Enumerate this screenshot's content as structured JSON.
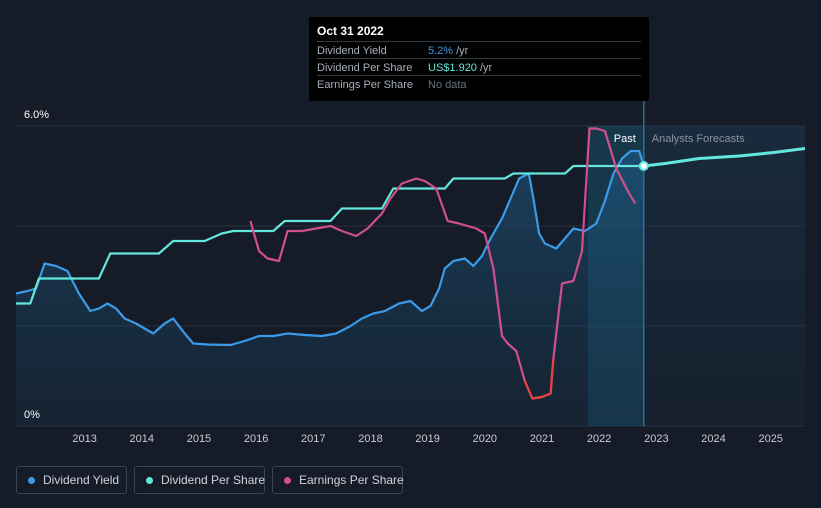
{
  "tooltip": {
    "date": "Oct 31 2022",
    "rows": [
      {
        "label": "Dividend Yield",
        "value": "5.2%",
        "unit": "/yr",
        "color": "#3b9be8"
      },
      {
        "label": "Dividend Per Share",
        "value": "US$1.920",
        "unit": "/yr",
        "color": "#64e6dc"
      },
      {
        "label": "Earnings Per Share",
        "value": "No data",
        "unit": "",
        "color": "#6b7380"
      }
    ]
  },
  "legend": [
    {
      "label": "Dividend Yield",
      "color": "#3b9be8"
    },
    {
      "label": "Dividend Per Share",
      "color": "#64e6dc"
    },
    {
      "label": "Earnings Per Share",
      "color": "#d0508d"
    }
  ],
  "chart_data": {
    "type": "line",
    "y_tick_labels": [
      "6.0%",
      "0%"
    ],
    "ylim": [
      0,
      6.0
    ],
    "x_ticks": [
      "2013",
      "2014",
      "2015",
      "2016",
      "2017",
      "2018",
      "2019",
      "2020",
      "2021",
      "2022",
      "2023",
      "2024",
      "2025"
    ],
    "xlim": [
      2011.85,
      2025.65
    ],
    "past_label": "Past",
    "forecast_label": "Analysts Forecasts",
    "divider_x": 2022.83,
    "grid": true,
    "series": [
      {
        "name": "Dividend Yield",
        "color": "#3b9be8",
        "points": [
          [
            2011.85,
            2.65
          ],
          [
            2012.05,
            2.7
          ],
          [
            2012.2,
            2.75
          ],
          [
            2012.35,
            3.25
          ],
          [
            2012.55,
            3.2
          ],
          [
            2012.75,
            3.1
          ],
          [
            2012.95,
            2.65
          ],
          [
            2013.15,
            2.3
          ],
          [
            2013.3,
            2.35
          ],
          [
            2013.45,
            2.45
          ],
          [
            2013.6,
            2.35
          ],
          [
            2013.75,
            2.15
          ],
          [
            2013.95,
            2.05
          ],
          [
            2014.1,
            1.95
          ],
          [
            2014.25,
            1.85
          ],
          [
            2014.45,
            2.05
          ],
          [
            2014.6,
            2.15
          ],
          [
            2014.8,
            1.85
          ],
          [
            2014.95,
            1.65
          ],
          [
            2015.2,
            1.63
          ],
          [
            2015.6,
            1.62
          ],
          [
            2015.85,
            1.7
          ],
          [
            2016.1,
            1.8
          ],
          [
            2016.35,
            1.8
          ],
          [
            2016.6,
            1.85
          ],
          [
            2016.9,
            1.82
          ],
          [
            2017.2,
            1.8
          ],
          [
            2017.45,
            1.85
          ],
          [
            2017.7,
            2.0
          ],
          [
            2017.9,
            2.15
          ],
          [
            2018.1,
            2.25
          ],
          [
            2018.3,
            2.3
          ],
          [
            2018.55,
            2.45
          ],
          [
            2018.75,
            2.5
          ],
          [
            2018.95,
            2.3
          ],
          [
            2019.1,
            2.4
          ],
          [
            2019.25,
            2.75
          ],
          [
            2019.35,
            3.15
          ],
          [
            2019.5,
            3.3
          ],
          [
            2019.7,
            3.35
          ],
          [
            2019.85,
            3.2
          ],
          [
            2020.0,
            3.4
          ],
          [
            2020.15,
            3.75
          ],
          [
            2020.35,
            4.15
          ],
          [
            2020.5,
            4.55
          ],
          [
            2020.65,
            4.95
          ],
          [
            2020.82,
            5.05
          ],
          [
            2020.9,
            4.55
          ],
          [
            2021.0,
            3.85
          ],
          [
            2021.1,
            3.65
          ],
          [
            2021.3,
            3.55
          ],
          [
            2021.45,
            3.75
          ],
          [
            2021.6,
            3.95
          ],
          [
            2021.8,
            3.9
          ],
          [
            2022.0,
            4.05
          ],
          [
            2022.15,
            4.5
          ],
          [
            2022.3,
            5.05
          ],
          [
            2022.45,
            5.35
          ],
          [
            2022.6,
            5.5
          ],
          [
            2022.75,
            5.5
          ],
          [
            2022.83,
            5.2
          ]
        ]
      },
      {
        "name": "Dividend Per Share",
        "color": "#64e6dc",
        "points": [
          [
            2011.85,
            2.45
          ],
          [
            2012.1,
            2.45
          ],
          [
            2012.25,
            2.95
          ],
          [
            2013.3,
            2.95
          ],
          [
            2013.5,
            3.45
          ],
          [
            2014.35,
            3.45
          ],
          [
            2014.6,
            3.7
          ],
          [
            2015.15,
            3.7
          ],
          [
            2015.45,
            3.85
          ],
          [
            2015.65,
            3.9
          ],
          [
            2016.35,
            3.9
          ],
          [
            2016.55,
            4.1
          ],
          [
            2017.35,
            4.1
          ],
          [
            2017.55,
            4.35
          ],
          [
            2018.25,
            4.35
          ],
          [
            2018.45,
            4.75
          ],
          [
            2019.35,
            4.75
          ],
          [
            2019.5,
            4.95
          ],
          [
            2020.4,
            4.95
          ],
          [
            2020.55,
            5.05
          ],
          [
            2021.45,
            5.05
          ],
          [
            2021.6,
            5.2
          ],
          [
            2022.83,
            5.2
          ],
          [
            2023.2,
            5.25
          ],
          [
            2023.8,
            5.35
          ],
          [
            2024.5,
            5.4
          ],
          [
            2025.1,
            5.47
          ],
          [
            2025.65,
            5.55
          ]
        ]
      },
      {
        "name": "Earnings Per Share",
        "color": "#d0508d",
        "negative_color": "#e84040",
        "points": [
          [
            2015.95,
            4.1
          ],
          [
            2016.1,
            3.5
          ],
          [
            2016.25,
            3.35
          ],
          [
            2016.45,
            3.3
          ],
          [
            2016.6,
            3.9
          ],
          [
            2016.85,
            3.9
          ],
          [
            2017.1,
            3.95
          ],
          [
            2017.35,
            4.0
          ],
          [
            2017.55,
            3.9
          ],
          [
            2017.8,
            3.8
          ],
          [
            2018.0,
            3.95
          ],
          [
            2018.25,
            4.25
          ],
          [
            2018.4,
            4.55
          ],
          [
            2018.6,
            4.85
          ],
          [
            2018.85,
            4.95
          ],
          [
            2019.0,
            4.9
          ],
          [
            2019.2,
            4.75
          ],
          [
            2019.4,
            4.1
          ],
          [
            2019.6,
            4.05
          ],
          [
            2019.9,
            3.95
          ],
          [
            2020.05,
            3.85
          ],
          [
            2020.2,
            3.15
          ],
          [
            2020.35,
            1.8
          ],
          [
            2020.45,
            1.65
          ],
          [
            2020.6,
            1.5
          ],
          [
            2020.75,
            0.9
          ],
          [
            2020.88,
            0.55
          ],
          [
            2021.05,
            0.58
          ],
          [
            2021.2,
            0.65
          ],
          [
            2021.25,
            1.35
          ],
          [
            2021.4,
            2.85
          ],
          [
            2021.6,
            2.9
          ],
          [
            2021.75,
            3.5
          ],
          [
            2021.88,
            5.95
          ],
          [
            2022.0,
            5.95
          ],
          [
            2022.15,
            5.9
          ],
          [
            2022.35,
            5.15
          ],
          [
            2022.55,
            4.7
          ],
          [
            2022.68,
            4.45
          ]
        ]
      }
    ]
  }
}
